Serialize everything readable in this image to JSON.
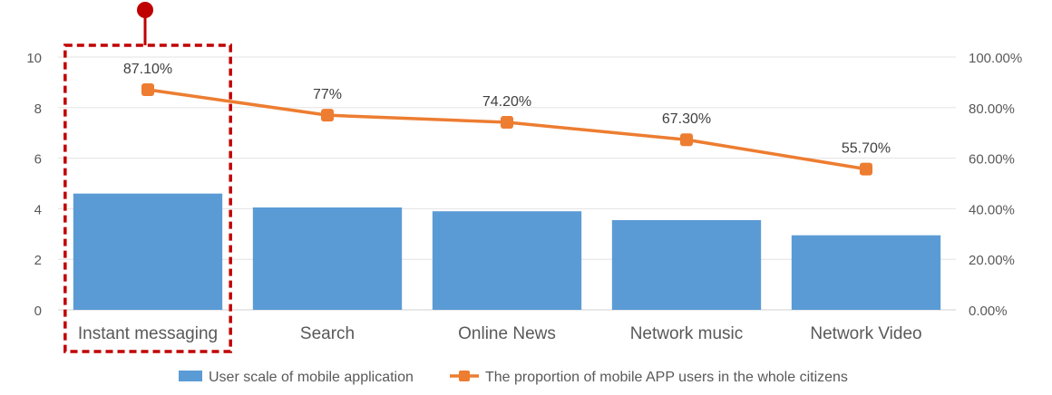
{
  "chart_data": {
    "type": "bar",
    "categories": [
      "Instant messaging",
      "Search",
      "Online News",
      "Network music",
      "Network Video"
    ],
    "series": [
      {
        "name": "User scale of mobile application",
        "type": "bar",
        "axis": "left",
        "color": "#5B9BD5",
        "values": [
          4.6,
          4.05,
          3.9,
          3.55,
          2.95
        ]
      },
      {
        "name": "The proportion of mobile APP users in the whole citizens",
        "type": "line",
        "axis": "right",
        "color": "#ED7D31",
        "values": [
          87.1,
          77,
          74.2,
          67.3,
          55.7
        ],
        "data_labels": [
          "87.10%",
          "77%",
          "74.20%",
          "67.30%",
          "55.70%"
        ]
      }
    ],
    "y_left": {
      "ylim": [
        0,
        10
      ],
      "ticks": [
        "0",
        "2",
        "4",
        "6",
        "8",
        "10"
      ]
    },
    "y_right": {
      "ylim": [
        0,
        100
      ],
      "ticks": [
        "0.00%",
        "20.00%",
        "40.00%",
        "60.00%",
        "80.00%",
        "100.00%"
      ]
    },
    "grid": true,
    "legend_position": "bottom",
    "highlight": {
      "category": "Instant messaging",
      "style": "dashed-box",
      "color": "#C00000",
      "marker_color": "#C00000"
    }
  }
}
